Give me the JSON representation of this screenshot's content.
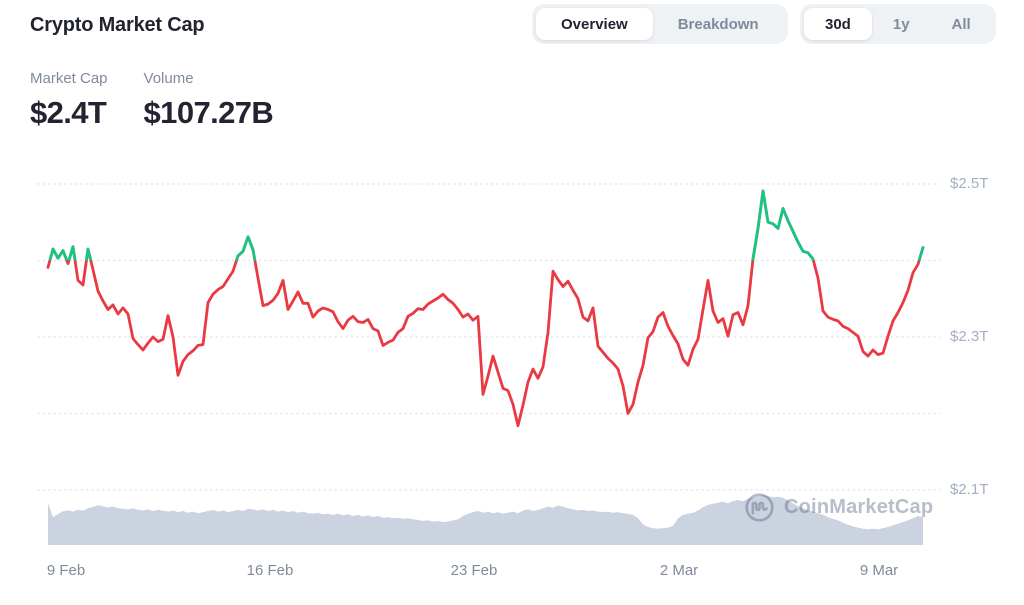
{
  "header": {
    "title": "Crypto Market Cap"
  },
  "view_toggle": {
    "options": [
      {
        "label": "Overview",
        "active": true
      },
      {
        "label": "Breakdown",
        "active": false
      }
    ]
  },
  "range_toggle": {
    "options": [
      {
        "label": "30d",
        "active": true
      },
      {
        "label": "1y",
        "active": false
      },
      {
        "label": "All",
        "active": false
      }
    ]
  },
  "stats": [
    {
      "label": "Market Cap",
      "value": "$2.4T"
    },
    {
      "label": "Volume",
      "value": "$107.27B"
    }
  ],
  "watermark": {
    "text": "CoinMarketCap",
    "logo_icon": "coinmarketcap-m-in-circle"
  },
  "chart_data": {
    "type": "line",
    "title": "Crypto Market Cap",
    "x_ticks": [
      "9 Feb",
      "16 Feb",
      "23 Feb",
      "2 Mar",
      "9 Mar"
    ],
    "y_ticks": [
      "$2.5T",
      "$2.3T",
      "$2.1T"
    ],
    "y_tick_values_trillions": [
      2.5,
      2.3,
      2.1
    ],
    "y_gridlines_trillions": [
      2.5,
      2.4,
      2.3,
      2.2,
      2.1
    ],
    "ylim_trillions": [
      2.08,
      2.52
    ],
    "grid": "dotted-horizontal",
    "legend": "none",
    "threshold_trillions": 2.4,
    "threshold_rule": "line drawn green above $2.4T, red below",
    "colors": {
      "up": "#16c784",
      "down": "#ea3943",
      "volume_fill": "#cbd2e0",
      "grid": "#e4e7ed"
    },
    "market_cap_series": {
      "name": "Market Cap",
      "unit": "USD trillions",
      "values": [
        2.391,
        2.415,
        2.403,
        2.413,
        2.396,
        2.418,
        2.374,
        2.368,
        2.415,
        2.388,
        2.36,
        2.347,
        2.336,
        2.342,
        2.33,
        2.338,
        2.33,
        2.298,
        2.29,
        2.283,
        2.292,
        2.3,
        2.294,
        2.297,
        2.328,
        2.3,
        2.25,
        2.268,
        2.277,
        2.282,
        2.289,
        2.29,
        2.345,
        2.356,
        2.362,
        2.366,
        2.376,
        2.386,
        2.406,
        2.412,
        2.431,
        2.414,
        2.377,
        2.341,
        2.343,
        2.348,
        2.357,
        2.374,
        2.336,
        2.347,
        2.359,
        2.344,
        2.344,
        2.326,
        2.334,
        2.338,
        2.336,
        2.333,
        2.32,
        2.311,
        2.322,
        2.327,
        2.32,
        2.319,
        2.323,
        2.311,
        2.308,
        2.289,
        2.293,
        2.296,
        2.306,
        2.311,
        2.327,
        2.331,
        2.337,
        2.336,
        2.343,
        2.347,
        2.351,
        2.356,
        2.349,
        2.344,
        2.336,
        2.326,
        2.33,
        2.322,
        2.327,
        2.225,
        2.249,
        2.275,
        2.254,
        2.233,
        2.23,
        2.212,
        2.184,
        2.211,
        2.241,
        2.258,
        2.246,
        2.261,
        2.306,
        2.386,
        2.375,
        2.366,
        2.373,
        2.361,
        2.35,
        2.326,
        2.321,
        2.338,
        2.288,
        2.28,
        2.272,
        2.266,
        2.258,
        2.236,
        2.2,
        2.212,
        2.241,
        2.263,
        2.299,
        2.307,
        2.326,
        2.332,
        2.314,
        2.302,
        2.291,
        2.271,
        2.263,
        2.284,
        2.297,
        2.336,
        2.374,
        2.334,
        2.319,
        2.324,
        2.301,
        2.329,
        2.332,
        2.316,
        2.341,
        2.402,
        2.442,
        2.491,
        2.45,
        2.448,
        2.442,
        2.468,
        2.452,
        2.438,
        2.424,
        2.412,
        2.41,
        2.402,
        2.377,
        2.334,
        2.326,
        2.323,
        2.321,
        2.314,
        2.311,
        2.306,
        2.301,
        2.281,
        2.275,
        2.283,
        2.277,
        2.279,
        2.301,
        2.321,
        2.332,
        2.345,
        2.361,
        2.384,
        2.395,
        2.417
      ]
    },
    "volume_series": {
      "name": "Volume",
      "unit": "USD billions (approx, read from bar heights)",
      "values": [
        151,
        101,
        112,
        122,
        126,
        121,
        128,
        124,
        133,
        138,
        144,
        140,
        136,
        139,
        133,
        131,
        129,
        133,
        127,
        125,
        129,
        123,
        127,
        125,
        121,
        125,
        119,
        123,
        117,
        121,
        115,
        119,
        123,
        127,
        121,
        125,
        119,
        123,
        127,
        123,
        131,
        129,
        125,
        129,
        123,
        127,
        121,
        125,
        119,
        123,
        117,
        121,
        115,
        113,
        117,
        111,
        113,
        109,
        113,
        107,
        111,
        105,
        109,
        103,
        107,
        101,
        105,
        99,
        101,
        97,
        99,
        95,
        97,
        93,
        91,
        87,
        89,
        85,
        87,
        83,
        85,
        89,
        93,
        105,
        113,
        119,
        123,
        117,
        121,
        115,
        119,
        113,
        117,
        121,
        115,
        125,
        129,
        123,
        127,
        133,
        139,
        135,
        143,
        139,
        133,
        129,
        125,
        127,
        123,
        125,
        121,
        119,
        121,
        117,
        119,
        115,
        113,
        109,
        97,
        75,
        65,
        61,
        59,
        61,
        63,
        69,
        97,
        109,
        113,
        117,
        125,
        137,
        145,
        149,
        153,
        157,
        151,
        159,
        163,
        159,
        167,
        173,
        177,
        181,
        177,
        173,
        175,
        171,
        161,
        151,
        141,
        133,
        127,
        121,
        115,
        109,
        101,
        95,
        89,
        81,
        73,
        67,
        63,
        59,
        57,
        59,
        57,
        61,
        65,
        71,
        77,
        83,
        89,
        97,
        105,
        101
      ]
    }
  }
}
